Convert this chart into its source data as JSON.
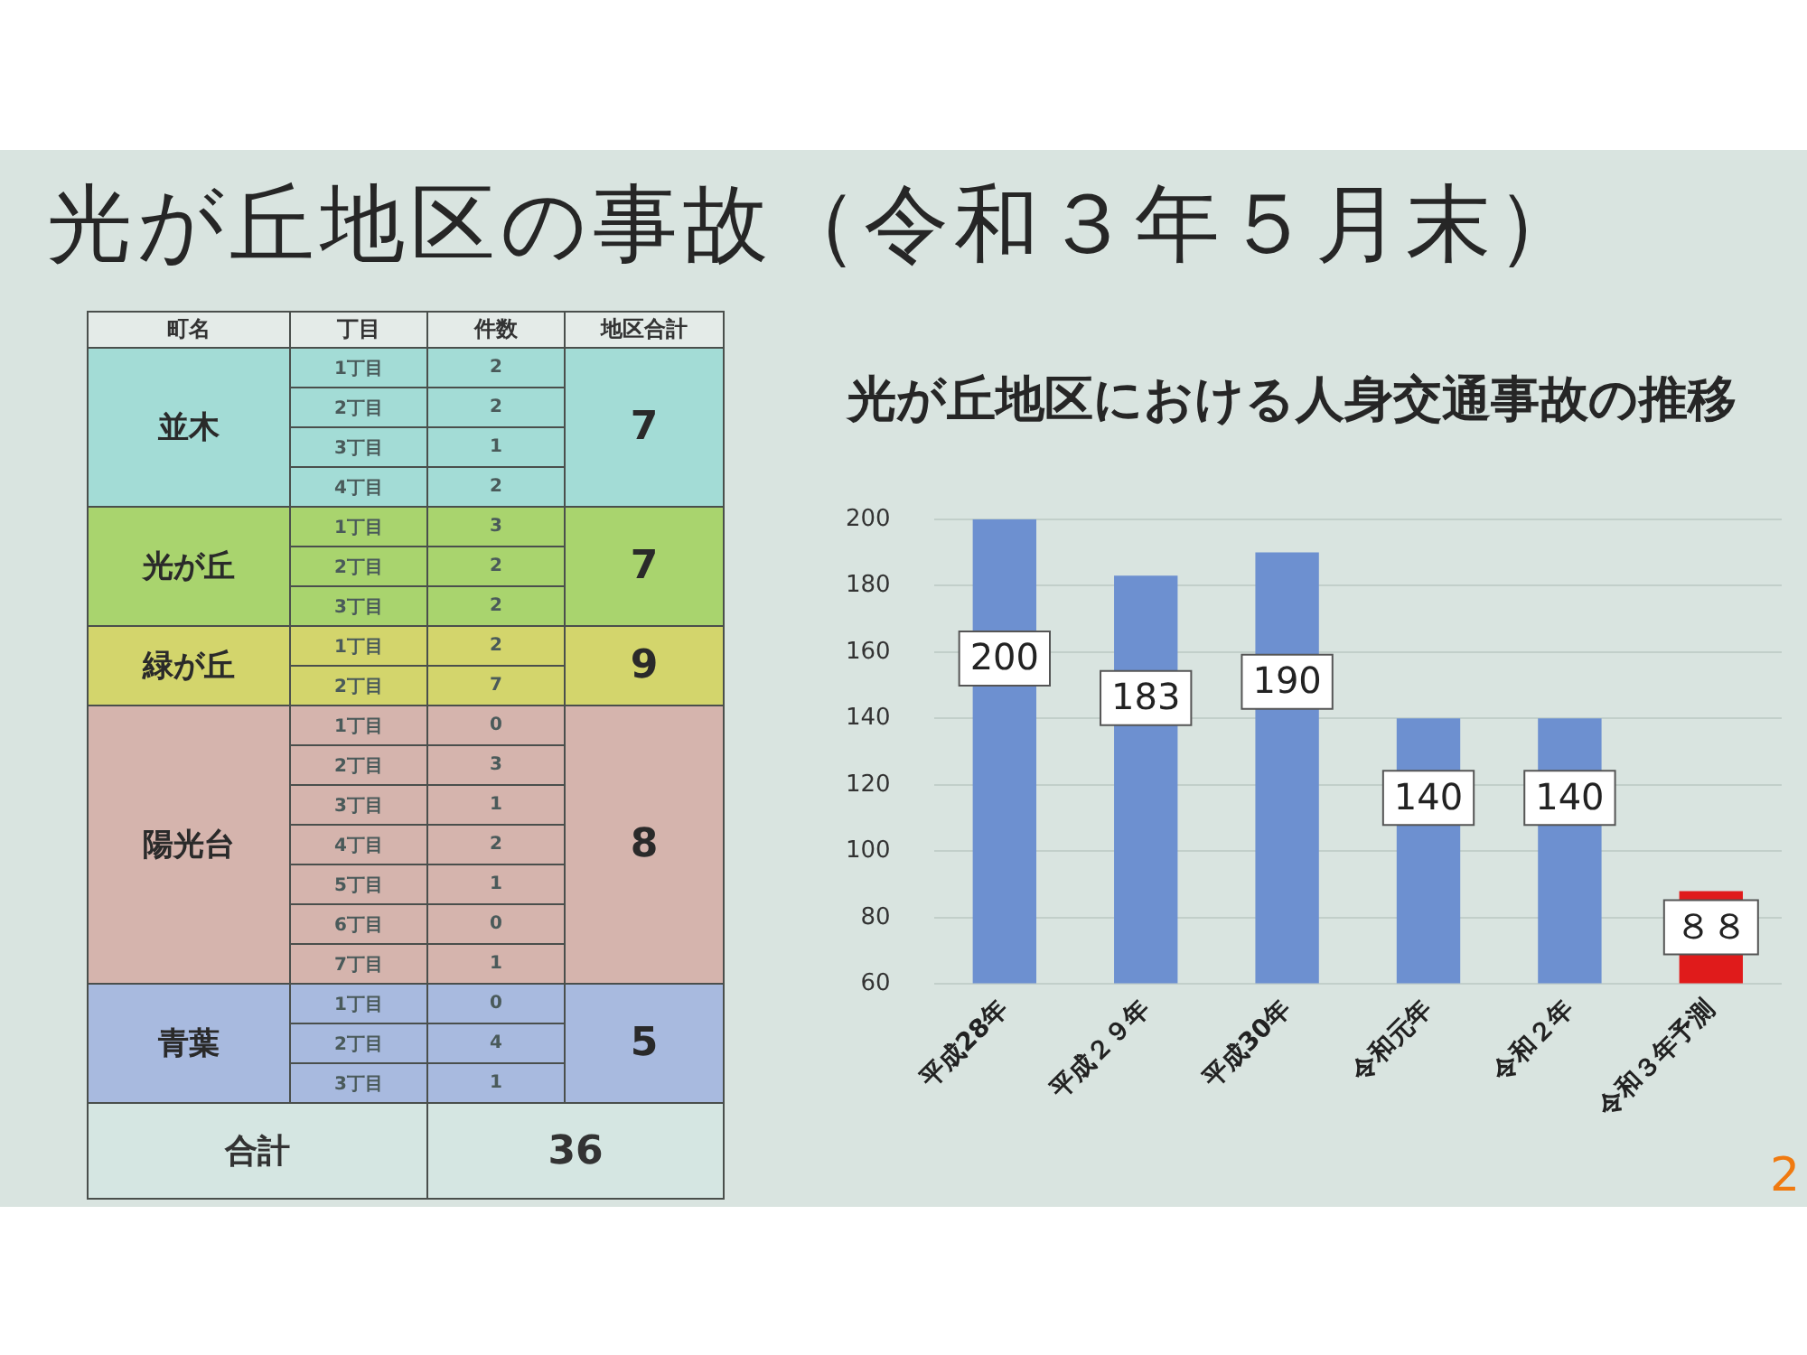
{
  "chart_data": [
    {
      "type": "other",
      "title": "光が丘地区の事故（令和３年５月末）",
      "categories": [
        "並木",
        "光が丘",
        "緑が丘",
        "陽光台",
        "青葉"
      ],
      "values": [
        7,
        7,
        9,
        8,
        5
      ],
      "colors": [
        "#a3dcd6",
        "#a9d46e",
        "#d3d56c",
        "#d5b4ad",
        "#a8badf"
      ],
      "data_labels": true,
      "annotations": [
        "町名",
        "地区合計",
        "合計",
        "36"
      ]
    },
    {
      "type": "heatmap",
      "ylabel": "丁目",
      "categories": [
        "件数"
      ],
      "y_categories": [
        "1丁目",
        "2丁目",
        "3丁目",
        "4丁目",
        "1丁目",
        "2丁目",
        "3丁目",
        "1丁目",
        "2丁目",
        "1丁目",
        "2丁目",
        "3丁目",
        "4丁目",
        "5丁目",
        "6丁目",
        "7丁目",
        "1丁目",
        "2丁目",
        "3丁目"
      ],
      "cells": [
        [
          2
        ],
        [
          2
        ],
        [
          1
        ],
        [
          2
        ],
        [
          3
        ],
        [
          2
        ],
        [
          2
        ],
        [
          2
        ],
        [
          7
        ],
        [
          0
        ],
        [
          3
        ],
        [
          1
        ],
        [
          2
        ],
        [
          1
        ],
        [
          0
        ],
        [
          1
        ],
        [
          0
        ],
        [
          4
        ],
        [
          1
        ]
      ],
      "colors": [
        "#a3dcd6",
        "#a3dcd6",
        "#a3dcd6",
        "#a3dcd6",
        "#a9d46e",
        "#a9d46e",
        "#a9d46e",
        "#d3d56c",
        "#d3d56c",
        "#d5b4ad",
        "#d5b4ad",
        "#d5b4ad",
        "#d5b4ad",
        "#d5b4ad",
        "#d5b4ad",
        "#d5b4ad",
        "#a8badf",
        "#a8badf",
        "#a8badf"
      ],
      "data_labels": true
    },
    {
      "type": "bar",
      "title": "光が丘地区における人身交通事故の推移",
      "categories": [
        "平成28年",
        "平成２９年",
        "平成30年",
        "令和元年",
        "令和２年",
        "令和３年予測"
      ],
      "values": [
        200,
        183,
        190,
        140,
        140,
        88
      ],
      "colors": [
        "#6d90d0",
        "#6d90d0",
        "#6d90d0",
        "#6d90d0",
        "#6d90d0",
        "#e01b1b"
      ],
      "value_labels": [
        "200",
        "183",
        "190",
        "140",
        "140",
        "８８"
      ],
      "ylim": [
        60,
        200
      ],
      "yticks": [
        60,
        80,
        100,
        120,
        140,
        160,
        180,
        200
      ],
      "grid": "y",
      "annotations": [
        "2"
      ]
    }
  ]
}
